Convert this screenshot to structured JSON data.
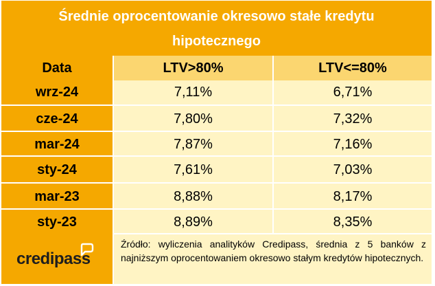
{
  "title": {
    "line1": "Średnie oprocentowanie okresowo stałe kredytu",
    "line2": "hipotecznego"
  },
  "table": {
    "headers": [
      "Data",
      "LTV>80%",
      "LTV<=80%"
    ],
    "rows": [
      [
        "wrz-24",
        "7,11%",
        "6,71%"
      ],
      [
        "cze-24",
        "7,80%",
        "7,32%"
      ],
      [
        "mar-24",
        "7,87%",
        "7,16%"
      ],
      [
        "sty-24",
        "7,61%",
        "7,03%"
      ],
      [
        "mar-23",
        "8,88%",
        "8,17%"
      ],
      [
        "sty-23",
        "8,89%",
        "8,35%"
      ]
    ]
  },
  "footer": {
    "logo_text": "credipass",
    "source_note": "Źródło: wyliczenia analityków Credipass, średnia z 5 banków z najniższym oprocentowaniem okresowo stałym kredytów hipotecznych."
  },
  "colors": {
    "header_orange": "#f5a800",
    "header_light": "#fbd670",
    "cell_light": "#fff4c4"
  }
}
